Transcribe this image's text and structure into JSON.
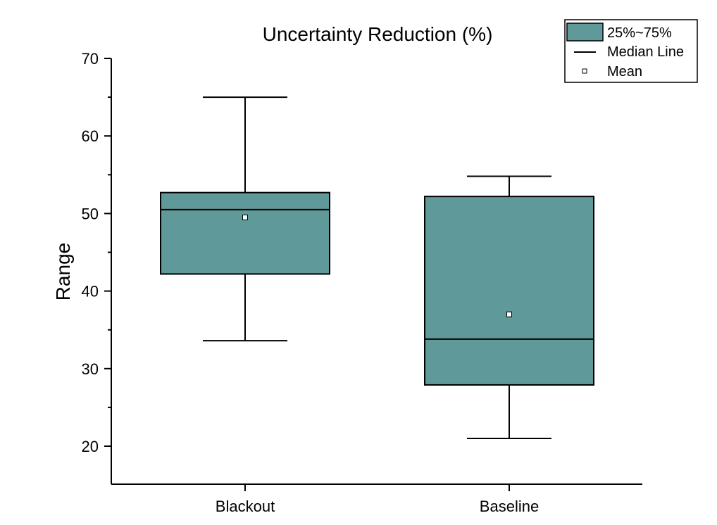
{
  "chart_data": {
    "type": "box",
    "title": "Uncertainty Reduction (%)",
    "xlabel": "",
    "ylabel": "Range",
    "ylim": [
      15,
      70
    ],
    "yticks": [
      20,
      30,
      40,
      50,
      60,
      70
    ],
    "categories": [
      "Blackout",
      "Baseline"
    ],
    "boxes": [
      {
        "category": "Blackout",
        "min": 33.6,
        "q1": 42.2,
        "median": 50.5,
        "q3": 52.7,
        "max": 65.0,
        "mean": 49.5
      },
      {
        "category": "Baseline",
        "min": 21.0,
        "q1": 27.9,
        "median": 33.8,
        "q3": 52.2,
        "max": 54.8,
        "mean": 37.0
      }
    ],
    "box_color": "#5f9999",
    "legend": {
      "position": "top-right",
      "items": [
        "25%~75%",
        "Median Line",
        "Mean"
      ]
    },
    "grid": false
  }
}
